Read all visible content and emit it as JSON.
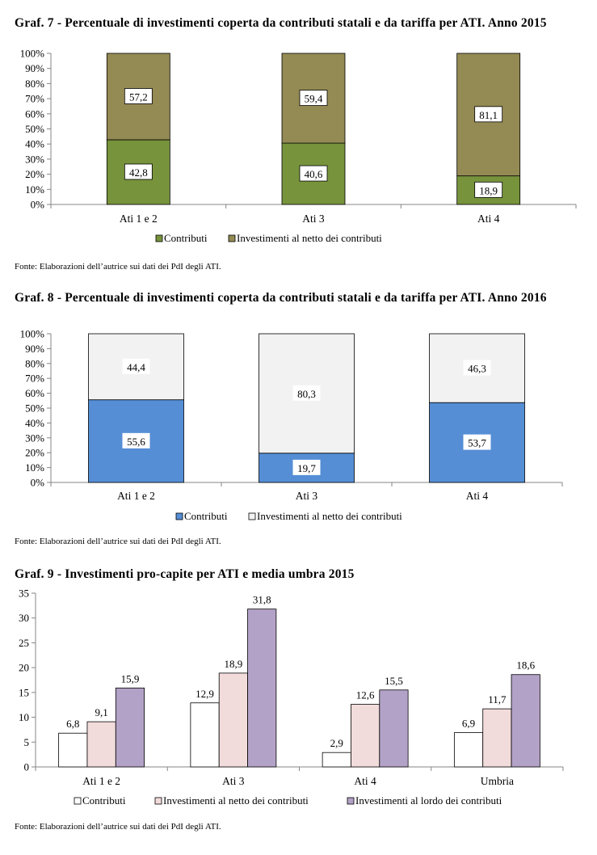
{
  "charts": [
    {
      "title": "Graf.  7 - Percentuale di investimenti coperta da contributi statali e da tariffa per ATI. Anno 2015",
      "source": "Fonte: Elaborazioni dell’autrice sui dati dei PdI degli ATI."
    },
    {
      "title": "Graf.  8 - Percentuale di investimenti coperta da contributi statali e da tariffa per ATI. Anno 2016",
      "source": "Fonte: Elaborazioni dell’autrice sui dati dei PdI degli ATI."
    },
    {
      "title": "Graf.  9 - Investimenti pro-capite per ATI e media umbra 2015",
      "source": "Fonte: Elaborazioni dell’autrice sui dati dei PdI degli ATI."
    }
  ],
  "chart_data": [
    {
      "type": "bar",
      "stacked": true,
      "categories": [
        "Ati 1 e 2",
        "Ati 3",
        "Ati 4"
      ],
      "series": [
        {
          "name": "Contributi",
          "values": [
            42.8,
            40.6,
            18.9
          ],
          "labels": [
            "42,8",
            "40,6",
            "18,9"
          ],
          "color": "#77933c"
        },
        {
          "name": "Investimenti al netto dei contributi",
          "values": [
            57.2,
            59.4,
            81.1
          ],
          "labels": [
            "57,2",
            "59,4",
            "81,1"
          ],
          "color": "#948a54"
        }
      ],
      "yticks": [
        "0%",
        "10%",
        "20%",
        "30%",
        "40%",
        "50%",
        "60%",
        "70%",
        "80%",
        "90%",
        "100%"
      ],
      "ylim": [
        0,
        100
      ],
      "legend": "bottom"
    },
    {
      "type": "bar",
      "stacked": true,
      "categories": [
        "Ati 1 e 2",
        "Ati 3",
        "Ati 4"
      ],
      "series": [
        {
          "name": "Contributi",
          "values": [
            55.6,
            19.7,
            53.7
          ],
          "labels": [
            "55,6",
            "19,7",
            "53,7"
          ],
          "color": "#558ed5"
        },
        {
          "name": "Investimenti al netto dei contributi",
          "values": [
            44.4,
            80.3,
            46.3
          ],
          "labels": [
            "44,4",
            "80,3",
            "46,3"
          ],
          "color": "#f2f2f2"
        }
      ],
      "yticks": [
        "0%",
        "10%",
        "20%",
        "30%",
        "40%",
        "50%",
        "60%",
        "70%",
        "80%",
        "90%",
        "100%"
      ],
      "ylim": [
        0,
        100
      ],
      "legend": "bottom"
    },
    {
      "type": "bar",
      "stacked": false,
      "categories": [
        "Ati 1 e 2",
        "Ati 3",
        "Ati 4",
        "Umbria"
      ],
      "series": [
        {
          "name": "Contributi",
          "values": [
            6.8,
            12.9,
            2.9,
            6.9
          ],
          "labels": [
            "6,8",
            "12,9",
            "2,9",
            "6,9"
          ],
          "color": "#ffffff"
        },
        {
          "name": "Investimenti al netto dei contributi",
          "values": [
            9.1,
            18.9,
            12.6,
            11.7
          ],
          "labels": [
            "9,1",
            "18,9",
            "12,6",
            "11,7"
          ],
          "color": "#f2dcdb"
        },
        {
          "name": "Investimenti al lordo dei contributi",
          "values": [
            15.9,
            31.8,
            15.5,
            18.6
          ],
          "labels": [
            "15,9",
            "31,8",
            "15,5",
            "18,6"
          ],
          "color": "#b3a2c7"
        }
      ],
      "yticks": [
        "0",
        "5",
        "10",
        "15",
        "20",
        "25",
        "30",
        "35"
      ],
      "ylim": [
        0,
        35
      ],
      "legend": "bottom"
    }
  ]
}
